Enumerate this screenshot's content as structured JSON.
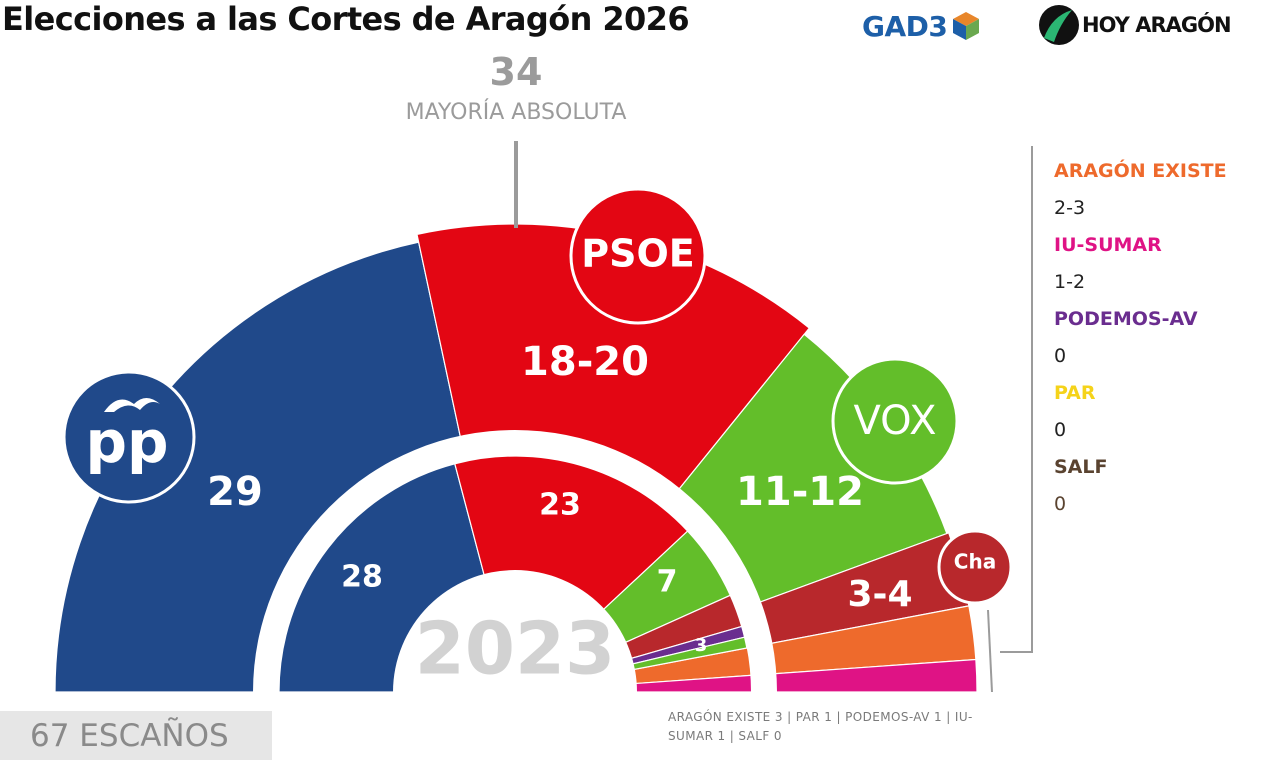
{
  "title": "Elecciones a las Cortes de Aragón 2026",
  "logos": {
    "pollster": "GAD3",
    "media": "HOY ARAGÓN"
  },
  "majority": {
    "value": "34",
    "label": "MAYORÍA ABSOLUTA"
  },
  "total_seats_label": "67 ESCAÑOS",
  "footnote": "ARAGÓN EXISTE 3 | PAR 1 |  PODEMOS-AV 1 | IU-SUMAR 1 | SALF 0",
  "legend": [
    {
      "name": "ARAGÓN EXISTE",
      "value": "2-3",
      "color": "#ee6a2c"
    },
    {
      "name": "IU-SUMAR",
      "value": "1-2",
      "color": "#df1385"
    },
    {
      "name": "PODEMOS-AV",
      "value": "0",
      "color": "#6a2d8f"
    },
    {
      "name": "PAR",
      "value": "0",
      "color": "#f5d31a"
    },
    {
      "name": "SALF",
      "value": "0",
      "color": "#5a4330"
    }
  ],
  "chart_data": {
    "type": "parliament-hemicycle",
    "total_seats": 67,
    "majority": 34,
    "rings": [
      {
        "name": "2026",
        "parties": [
          {
            "party": "PP",
            "seats": 29,
            "label": "29",
            "color": "#20498a",
            "logo": "PP"
          },
          {
            "party": "PSOE",
            "seats": 19,
            "label": "18-20",
            "color": "#e30613",
            "logo": "PSOE"
          },
          {
            "party": "VOX",
            "seats": 11.5,
            "label": "11-12",
            "color": "#63be2a",
            "logo": "VOX"
          },
          {
            "party": "CHA",
            "seats": 3.5,
            "label": "3-4",
            "color": "#b8282c",
            "logo": "Cha"
          },
          {
            "party": "ARAGÓN EXISTE",
            "seats": 2.5,
            "label": "2-3",
            "color": "#ee6a2c"
          },
          {
            "party": "IU-SUMAR",
            "seats": 1.5,
            "label": "1-2",
            "color": "#df1385"
          }
        ]
      },
      {
        "name": "2023",
        "center_label": "2023",
        "parties": [
          {
            "party": "PP",
            "seats": 28,
            "label": "28",
            "color": "#20498a"
          },
          {
            "party": "PSOE",
            "seats": 23,
            "label": "23",
            "color": "#e30613"
          },
          {
            "party": "VOX",
            "seats": 7,
            "label": "7",
            "color": "#63be2a"
          },
          {
            "party": "CHA",
            "seats": 3,
            "label": "3",
            "color": "#b8282c"
          },
          {
            "party": "PODEMOS-AV",
            "seats": 1,
            "label": "",
            "color": "#6a2d8f"
          },
          {
            "party": "IU-SUMAR",
            "seats": 1,
            "label": "",
            "color": "#63be2a"
          }
        ]
      }
    ]
  }
}
